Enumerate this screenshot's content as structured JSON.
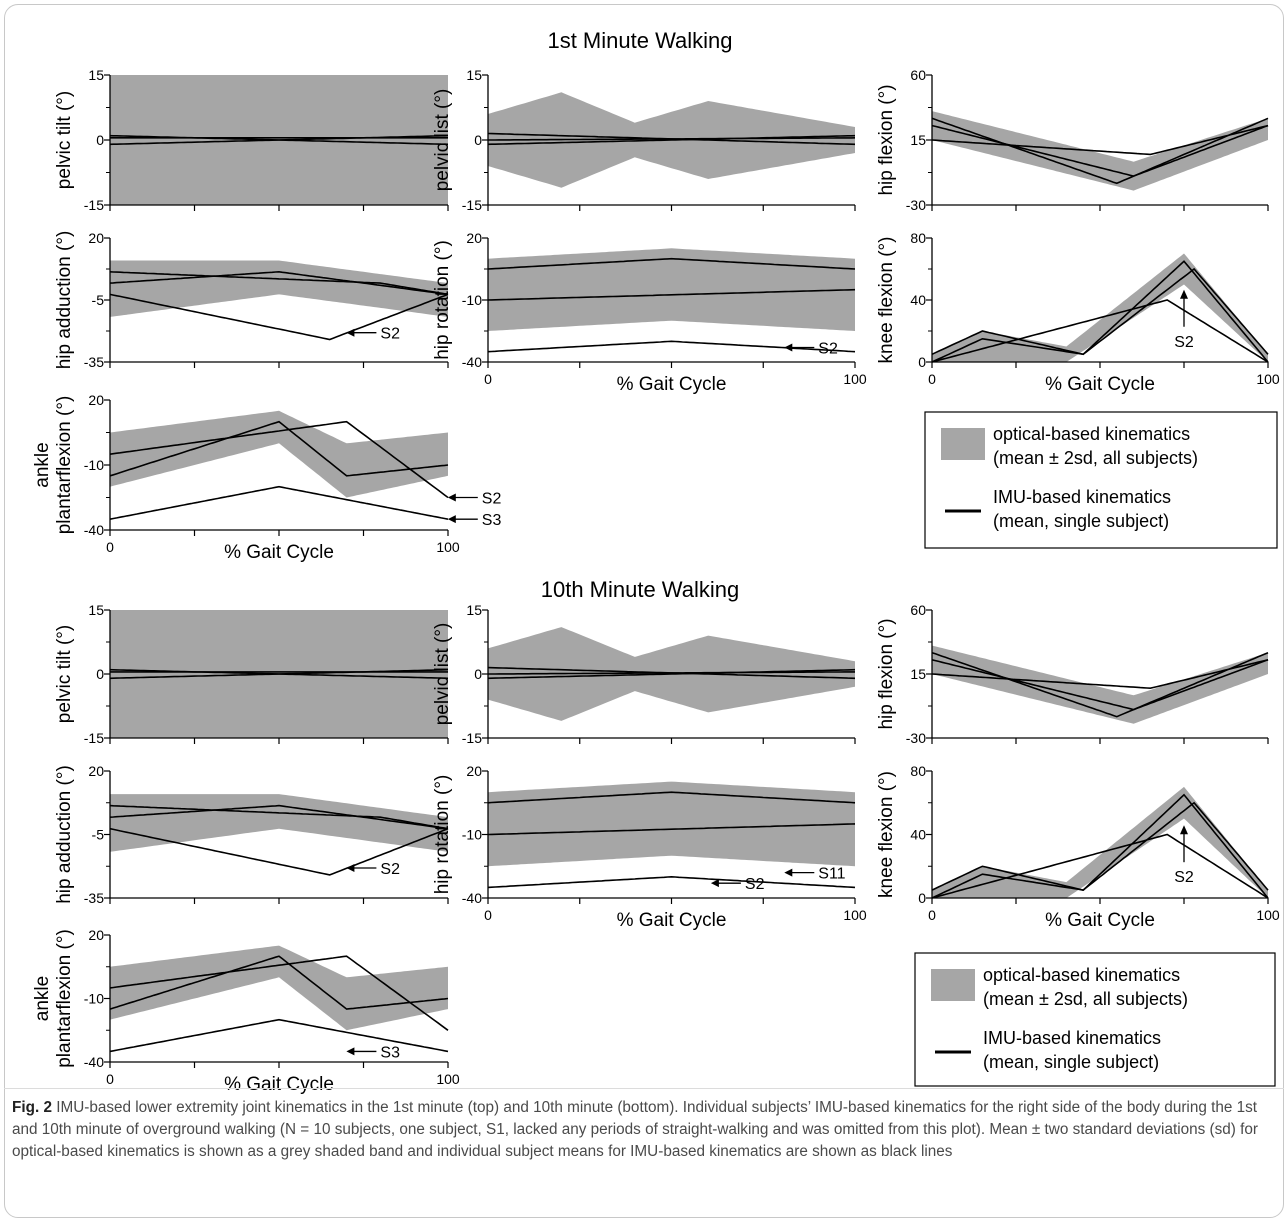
{
  "figure": {
    "section_titles": [
      "1st Minute Walking",
      "10th Minute Walking"
    ],
    "caption_label": "Fig. 2",
    "caption_text": "  IMU-based lower extremity joint kinematics in the 1st minute (top) and 10th minute (bottom). Individual subjects’ IMU-based kinematics for the right side of the body during the 1st and 10th minute of overground walking (N = 10 subjects, one subject, S1, lacked any periods of straight-walking and was omitted from this plot). Mean ± two standard deviations (sd) for optical-based kinematics is shown as a grey shaded band and individual subject means for IMU-based kinematics are shown as black lines",
    "legend": [
      {
        "swatch": "band",
        "lines": [
          "optical-based kinematics",
          "(mean ± 2sd, all subjects)"
        ]
      },
      {
        "swatch": "line",
        "lines": [
          "IMU-based kinematics",
          "(mean, single subject)"
        ]
      }
    ],
    "colors": {
      "band": "#a6a6a6",
      "line": "#000000",
      "axis": "#000000"
    }
  },
  "chart_data": [
    {
      "type": "area+line",
      "panel": "1st-pelvic-tilt",
      "ylabel": "pelvic tilt (°)",
      "ylim": [
        -15,
        15
      ],
      "yticks": [
        "15",
        "0",
        "-15"
      ],
      "xlim": [
        0,
        100
      ],
      "xticks": [],
      "band": {
        "x": [
          0,
          100
        ],
        "upper": [
          15,
          15
        ],
        "lower": [
          -15,
          -15
        ]
      },
      "series": [
        {
          "x": [
            0,
            100
          ],
          "y": [
            0.5,
            0.5
          ]
        },
        {
          "x": [
            0,
            100
          ],
          "y": [
            -1,
            1
          ]
        },
        {
          "x": [
            0,
            100
          ],
          "y": [
            1,
            -1
          ]
        }
      ],
      "annotations": []
    },
    {
      "type": "area+line",
      "panel": "1st-pelvic-list",
      "ylabel": "pelvic list (°)",
      "ylim": [
        -15,
        15
      ],
      "yticks": [
        "15",
        "0",
        "-15"
      ],
      "xlim": [
        0,
        100
      ],
      "xticks": [],
      "band": {
        "x": [
          0,
          20,
          40,
          60,
          80,
          100
        ],
        "upper": [
          6,
          11,
          4,
          9,
          6,
          3
        ],
        "lower": [
          -6,
          -11,
          -4,
          -9,
          -6,
          -3
        ]
      },
      "series": [
        {
          "x": [
            0,
            100
          ],
          "y": [
            0,
            0.5
          ]
        },
        {
          "x": [
            0,
            100
          ],
          "y": [
            -1,
            1
          ]
        },
        {
          "x": [
            0,
            100
          ],
          "y": [
            1.5,
            -1
          ]
        }
      ],
      "annotations": []
    },
    {
      "type": "area+line",
      "panel": "1st-hip-flexion",
      "ylabel": "hip flexion (°)",
      "ylim": [
        -30,
        60
      ],
      "yticks": [
        "60",
        "15",
        "-30"
      ],
      "xlim": [
        0,
        100
      ],
      "xticks": [],
      "band": {
        "x": [
          0,
          60,
          100
        ],
        "upper": [
          35,
          0,
          30
        ],
        "lower": [
          15,
          -20,
          15
        ]
      },
      "series": [
        {
          "x": [
            0,
            60,
            100
          ],
          "y": [
            25,
            -10,
            25
          ]
        },
        {
          "x": [
            0,
            55,
            100
          ],
          "y": [
            30,
            -15,
            30
          ]
        },
        {
          "x": [
            0,
            65,
            100
          ],
          "y": [
            15,
            5,
            25
          ]
        }
      ],
      "annotations": []
    },
    {
      "type": "area+line",
      "panel": "1st-hip-adduction",
      "ylabel": "hip adduction (°)",
      "ylim": [
        -35,
        20
      ],
      "yticks": [
        "20",
        "-5",
        "-35"
      ],
      "xlim": [
        0,
        100
      ],
      "xticks": [],
      "band": {
        "x": [
          0,
          50,
          100
        ],
        "upper": [
          10,
          10,
          0
        ],
        "lower": [
          -15,
          -5,
          -15
        ]
      },
      "series": [
        {
          "x": [
            0,
            50,
            100
          ],
          "y": [
            0,
            5,
            -5
          ]
        },
        {
          "x": [
            0,
            65,
            100
          ],
          "y": [
            -5,
            -25,
            -5
          ]
        },
        {
          "x": [
            0,
            80,
            100
          ],
          "y": [
            5,
            0,
            -5
          ]
        }
      ],
      "annotations": [
        {
          "text": "S2",
          "x": 80,
          "y": -22
        }
      ]
    },
    {
      "type": "area+line",
      "panel": "1st-hip-rotation",
      "ylabel": "hip rotation (°)",
      "ylim": [
        -40,
        20
      ],
      "yticks": [
        "20",
        "-10",
        "-40"
      ],
      "xlim": [
        0,
        100
      ],
      "xticks": [
        "0",
        "100"
      ],
      "xlabel": "% Gait Cycle",
      "band": {
        "x": [
          0,
          50,
          100
        ],
        "upper": [
          10,
          15,
          10
        ],
        "lower": [
          -25,
          -20,
          -25
        ]
      },
      "series": [
        {
          "x": [
            0,
            50,
            100
          ],
          "y": [
            5,
            10,
            5
          ]
        },
        {
          "x": [
            0,
            100
          ],
          "y": [
            -10,
            -5
          ]
        },
        {
          "x": [
            0,
            50,
            100
          ],
          "y": [
            -35,
            -30,
            -35
          ]
        }
      ],
      "annotations": [
        {
          "text": "S2",
          "x": 90,
          "y": -33
        }
      ]
    },
    {
      "type": "area+line",
      "panel": "1st-knee-flexion",
      "ylabel": "knee flexion (°)",
      "ylim": [
        0,
        80
      ],
      "yticks": [
        "80",
        "40",
        "0"
      ],
      "xlim": [
        0,
        100
      ],
      "xticks": [
        "0",
        "100"
      ],
      "xlabel": "% Gait Cycle",
      "band": {
        "x": [
          0,
          15,
          40,
          75,
          100
        ],
        "upper": [
          5,
          20,
          10,
          70,
          5
        ],
        "lower": [
          0,
          0,
          0,
          50,
          0
        ]
      },
      "series": [
        {
          "x": [
            0,
            15,
            45,
            75,
            100
          ],
          "y": [
            0,
            15,
            5,
            65,
            0
          ]
        },
        {
          "x": [
            0,
            15,
            45,
            78,
            100
          ],
          "y": [
            5,
            20,
            5,
            60,
            5
          ]
        },
        {
          "x": [
            0,
            70,
            100
          ],
          "y": [
            0,
            40,
            0
          ]
        }
      ],
      "annotations": [
        {
          "text": "S2",
          "x": 75,
          "y": 15
        }
      ]
    },
    {
      "type": "area+line",
      "panel": "1st-ankle-plantarflexion",
      "ylabel": "ankle plantarflexion (°)",
      "ylim": [
        -40,
        20
      ],
      "yticks": [
        "20",
        "-10",
        "-40"
      ],
      "xlim": [
        0,
        100
      ],
      "xticks": [
        "0",
        "100"
      ],
      "xlabel": "% Gait Cycle",
      "band": {
        "x": [
          0,
          50,
          70,
          100
        ],
        "upper": [
          5,
          15,
          0,
          5
        ],
        "lower": [
          -20,
          0,
          -25,
          -15
        ]
      },
      "series": [
        {
          "x": [
            0,
            50,
            70,
            100
          ],
          "y": [
            -15,
            10,
            -15,
            -10
          ]
        },
        {
          "x": [
            0,
            50,
            100
          ],
          "y": [
            -35,
            -20,
            -35
          ]
        },
        {
          "x": [
            0,
            70,
            100
          ],
          "y": [
            -5,
            10,
            -25
          ]
        }
      ],
      "annotations": [
        {
          "text": "S2",
          "x": 110,
          "y": -25
        },
        {
          "text": "S3",
          "x": 110,
          "y": -35
        }
      ]
    },
    {
      "type": "area+line",
      "panel": "10th-pelvic-tilt",
      "ylabel": "pelvic tilt (°)",
      "ylim": [
        -15,
        15
      ],
      "yticks": [
        "15",
        "0",
        "-15"
      ],
      "xlim": [
        0,
        100
      ],
      "xticks": [],
      "band": {
        "x": [
          0,
          100
        ],
        "upper": [
          15,
          15
        ],
        "lower": [
          -15,
          -15
        ]
      },
      "series": [
        {
          "x": [
            0,
            100
          ],
          "y": [
            0.5,
            0.5
          ]
        },
        {
          "x": [
            0,
            100
          ],
          "y": [
            -1,
            1
          ]
        },
        {
          "x": [
            0,
            100
          ],
          "y": [
            1,
            -1
          ]
        }
      ],
      "annotations": []
    },
    {
      "type": "area+line",
      "panel": "10th-pelvic-list",
      "ylabel": "pelvic list (°)",
      "ylim": [
        -15,
        15
      ],
      "yticks": [
        "15",
        "0",
        "-15"
      ],
      "xlim": [
        0,
        100
      ],
      "xticks": [],
      "band": {
        "x": [
          0,
          20,
          40,
          60,
          80,
          100
        ],
        "upper": [
          6,
          11,
          4,
          9,
          6,
          3
        ],
        "lower": [
          -6,
          -11,
          -4,
          -9,
          -6,
          -3
        ]
      },
      "series": [
        {
          "x": [
            0,
            100
          ],
          "y": [
            0,
            0.5
          ]
        },
        {
          "x": [
            0,
            100
          ],
          "y": [
            -1,
            1
          ]
        },
        {
          "x": [
            0,
            100
          ],
          "y": [
            1.5,
            -1
          ]
        }
      ],
      "annotations": []
    },
    {
      "type": "area+line",
      "panel": "10th-hip-flexion",
      "ylabel": "hip flexion (°)",
      "ylim": [
        -30,
        60
      ],
      "yticks": [
        "60",
        "15",
        "-30"
      ],
      "xlim": [
        0,
        100
      ],
      "xticks": [],
      "band": {
        "x": [
          0,
          60,
          100
        ],
        "upper": [
          35,
          0,
          30
        ],
        "lower": [
          15,
          -20,
          15
        ]
      },
      "series": [
        {
          "x": [
            0,
            60,
            100
          ],
          "y": [
            25,
            -10,
            25
          ]
        },
        {
          "x": [
            0,
            55,
            100
          ],
          "y": [
            30,
            -15,
            30
          ]
        },
        {
          "x": [
            0,
            65,
            100
          ],
          "y": [
            15,
            5,
            25
          ]
        }
      ],
      "annotations": []
    },
    {
      "type": "area+line",
      "panel": "10th-hip-adduction",
      "ylabel": "hip adduction (°)",
      "ylim": [
        -35,
        20
      ],
      "yticks": [
        "20",
        "-5",
        "-35"
      ],
      "xlim": [
        0,
        100
      ],
      "xticks": [],
      "band": {
        "x": [
          0,
          50,
          100
        ],
        "upper": [
          10,
          10,
          0
        ],
        "lower": [
          -15,
          -5,
          -15
        ]
      },
      "series": [
        {
          "x": [
            0,
            50,
            100
          ],
          "y": [
            0,
            5,
            -5
          ]
        },
        {
          "x": [
            0,
            65,
            100
          ],
          "y": [
            -5,
            -25,
            -5
          ]
        },
        {
          "x": [
            0,
            80,
            100
          ],
          "y": [
            5,
            0,
            -5
          ]
        }
      ],
      "annotations": [
        {
          "text": "S2",
          "x": 80,
          "y": -22
        }
      ]
    },
    {
      "type": "area+line",
      "panel": "10th-hip-rotation",
      "ylabel": "hip rotation (°)",
      "ylim": [
        -40,
        20
      ],
      "yticks": [
        "20",
        "-10",
        "-40"
      ],
      "xlim": [
        0,
        100
      ],
      "xticks": [
        "0",
        "100"
      ],
      "xlabel": "% Gait Cycle",
      "band": {
        "x": [
          0,
          50,
          100
        ],
        "upper": [
          10,
          15,
          10
        ],
        "lower": [
          -25,
          -20,
          -25
        ]
      },
      "series": [
        {
          "x": [
            0,
            50,
            100
          ],
          "y": [
            5,
            10,
            5
          ]
        },
        {
          "x": [
            0,
            100
          ],
          "y": [
            -10,
            -5
          ]
        },
        {
          "x": [
            0,
            50,
            100
          ],
          "y": [
            -35,
            -30,
            -35
          ]
        }
      ],
      "annotations": [
        {
          "text": "S2",
          "x": 70,
          "y": -33
        },
        {
          "text": "S11",
          "x": 90,
          "y": -28
        }
      ]
    },
    {
      "type": "area+line",
      "panel": "10th-knee-flexion",
      "ylabel": "knee flexion (°)",
      "ylim": [
        0,
        80
      ],
      "yticks": [
        "80",
        "40",
        "0"
      ],
      "xlim": [
        0,
        100
      ],
      "xticks": [
        "0",
        "100"
      ],
      "xlabel": "% Gait Cycle",
      "band": {
        "x": [
          0,
          15,
          40,
          75,
          100
        ],
        "upper": [
          5,
          20,
          10,
          70,
          5
        ],
        "lower": [
          0,
          0,
          0,
          50,
          0
        ]
      },
      "series": [
        {
          "x": [
            0,
            15,
            45,
            75,
            100
          ],
          "y": [
            0,
            15,
            5,
            65,
            0
          ]
        },
        {
          "x": [
            0,
            15,
            45,
            78,
            100
          ],
          "y": [
            5,
            20,
            5,
            60,
            5
          ]
        },
        {
          "x": [
            0,
            70,
            100
          ],
          "y": [
            0,
            40,
            0
          ]
        }
      ],
      "annotations": [
        {
          "text": "S2",
          "x": 75,
          "y": 15
        }
      ]
    },
    {
      "type": "area+line",
      "panel": "10th-ankle-plantarflexion",
      "ylabel": "ankle plantarflexion (°)",
      "ylim": [
        -40,
        20
      ],
      "yticks": [
        "20",
        "-10",
        "-40"
      ],
      "xlim": [
        0,
        100
      ],
      "xticks": [
        "0",
        "100"
      ],
      "xlabel": "% Gait Cycle",
      "band": {
        "x": [
          0,
          50,
          70,
          100
        ],
        "upper": [
          5,
          15,
          0,
          5
        ],
        "lower": [
          -20,
          0,
          -25,
          -15
        ]
      },
      "series": [
        {
          "x": [
            0,
            50,
            70,
            100
          ],
          "y": [
            -15,
            10,
            -15,
            -10
          ]
        },
        {
          "x": [
            0,
            50,
            100
          ],
          "y": [
            -35,
            -20,
            -35
          ]
        },
        {
          "x": [
            0,
            70,
            100
          ],
          "y": [
            -5,
            10,
            -25
          ]
        }
      ],
      "annotations": [
        {
          "text": "S3",
          "x": 80,
          "y": -35
        }
      ]
    }
  ]
}
